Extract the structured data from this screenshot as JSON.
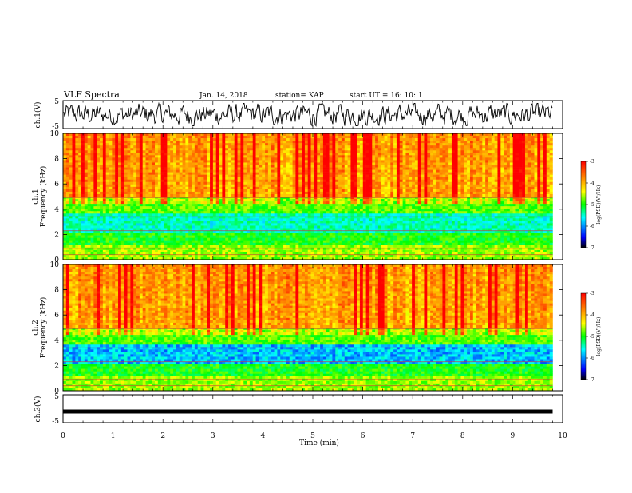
{
  "header": {
    "title": "VLF Spectra",
    "date": "Jan. 14, 2018",
    "station": "station= KAP",
    "start": "start  UT =  16: 10: 1"
  },
  "chart_data": [
    {
      "id": "ch1_waveform",
      "type": "line",
      "ylabel": "ch.1(V)",
      "ylim": [
        -5,
        5
      ],
      "yticks": [
        "5",
        "-5"
      ],
      "description_values": "noisy waveform oscillating roughly between -3 and 3 V"
    },
    {
      "id": "ch1_spectrogram",
      "type": "heatmap",
      "ylabel": "ch.1\nFrequency (kHz)",
      "ylim": [
        0,
        10
      ],
      "yticks": [
        "0",
        "2",
        "4",
        "6",
        "8",
        "10"
      ],
      "colorbar": {
        "label": "log(PSD)(V²/Hz)",
        "ticks": [
          "-3",
          "-4",
          "-5",
          "-6",
          "-7"
        ],
        "range": [
          -7,
          -3
        ]
      }
    },
    {
      "id": "ch2_spectrogram",
      "type": "heatmap",
      "ylabel": "ch.2\nFrequency (kHz)",
      "ylim": [
        0,
        10
      ],
      "yticks": [
        "0",
        "2",
        "4",
        "6",
        "8",
        "10"
      ],
      "colorbar": {
        "label": "log(PSD)(V²/Hz)",
        "ticks": [
          "-3",
          "-4",
          "-5",
          "-6",
          "-7"
        ],
        "range": [
          -7,
          -3
        ]
      }
    },
    {
      "id": "ch3_waveform",
      "type": "line",
      "ylabel": "ch.3(V)",
      "ylim": [
        -5,
        5
      ],
      "yticks": [
        "5",
        "-5"
      ],
      "constant_value": -1
    }
  ],
  "xaxis": {
    "label": "Time (min)",
    "range": [
      0,
      10
    ],
    "ticks": [
      "0",
      "1",
      "2",
      "3",
      "4",
      "5",
      "6",
      "7",
      "8",
      "9",
      "10"
    ]
  },
  "colors": {
    "jet": [
      "#000080",
      "#0000ff",
      "#00ffff",
      "#00ff00",
      "#ffff00",
      "#ff8000",
      "#ff0000"
    ]
  }
}
